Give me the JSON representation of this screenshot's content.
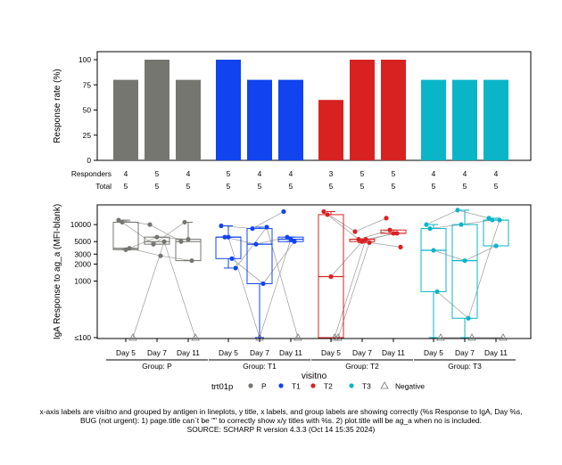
{
  "chart_data": [
    {
      "type": "bar",
      "ylabel": "Response rate (%)",
      "ylim": [
        0,
        110
      ],
      "yticks": [
        0,
        25,
        50,
        75,
        100
      ],
      "categories": [
        "Day 5",
        "Day 7",
        "Day 11",
        "Day 5",
        "Day 7",
        "Day 11",
        "Day 5",
        "Day 7",
        "Day 11",
        "Day 5",
        "Day 7",
        "Day 11"
      ],
      "groups": [
        "P",
        "T1",
        "T2",
        "T3"
      ],
      "bar_group": [
        "P",
        "P",
        "P",
        "T1",
        "T1",
        "T1",
        "T2",
        "T2",
        "T2",
        "T3",
        "T3",
        "T3"
      ],
      "values": [
        80,
        100,
        80,
        100,
        80,
        80,
        60,
        100,
        100,
        80,
        80,
        80
      ],
      "table_labels": {
        "responders": "Responders",
        "total": "Total"
      },
      "responders": [
        "4",
        "5",
        "4",
        "5",
        "4",
        "4",
        "3",
        "5",
        "5",
        "4",
        "4",
        "4"
      ],
      "total": [
        "5",
        "5",
        "5",
        "5",
        "5",
        "5",
        "5",
        "5",
        "5",
        "5",
        "5",
        "5"
      ],
      "grid": false
    },
    {
      "type": "box",
      "ylabel": "IgA Response to ag_a (MFI-blank)",
      "xlabel": "visitno",
      "y_scale": "log",
      "ylim": [
        100,
        20000
      ],
      "y_ticks": [
        100,
        1000,
        2000,
        3000,
        5000,
        10000
      ],
      "y_tick_labels": [
        "≤100",
        "1000",
        "2000",
        "3000",
        "5000",
        "10000"
      ],
      "visits": [
        "Day 5",
        "Day 7",
        "Day 11"
      ],
      "group_labels": [
        "Group: P",
        "Group: T1",
        "Group: T2",
        "Group: T3"
      ],
      "group_keys": [
        "P",
        "T1",
        "T2",
        "T3"
      ],
      "legend": {
        "title": "trt01p",
        "items": [
          {
            "label": "P",
            "color": "#767670",
            "shape": "circle"
          },
          {
            "label": "T1",
            "color": "#1144ee",
            "shape": "circle"
          },
          {
            "label": "T2",
            "color": "#d82222",
            "shape": "circle"
          },
          {
            "label": "T3",
            "color": "#0bb5c8",
            "shape": "circle"
          },
          {
            "label": "Negative",
            "color": "#777777",
            "shape": "triangle"
          }
        ]
      },
      "groups": [
        {
          "name": "P",
          "color": "#767670",
          "subjects": [
            [
              12000,
              10000,
              5000
            ],
            [
              11000,
              4500,
              11000
            ],
            [
              3600,
              6000,
              5500
            ],
            [
              3800,
              2800,
              2300
            ],
            [
              100,
              5000,
              100
            ]
          ]
        },
        {
          "name": "T1",
          "color": "#1144ee",
          "subjects": [
            [
              9500,
              8500,
              17000
            ],
            [
              6000,
              4500,
              6000
            ],
            [
              6000,
              100,
              5500
            ],
            [
              2500,
              900,
              5000
            ],
            [
              1700,
              9000,
              100
            ]
          ]
        },
        {
          "name": "T2",
          "color": "#d82222",
          "subjects": [
            [
              17000,
              7500,
              13000
            ],
            [
              15000,
              5500,
              8000
            ],
            [
              1200,
              5000,
              7000
            ],
            [
              100,
              5500,
              7000
            ],
            [
              100,
              4800,
              4000
            ]
          ]
        },
        {
          "name": "T3",
          "color": "#0bb5c8",
          "subjects": [
            [
              10000,
              18000,
              13000
            ],
            [
              8500,
              10000,
              12000
            ],
            [
              3500,
              2300,
              4200
            ],
            [
              650,
              220,
              12000
            ],
            [
              100,
              100,
              100
            ]
          ]
        }
      ]
    }
  ],
  "footer": {
    "line1": "x-axis labels are visitno and grouped by antigen in lineplots, y title, x labels, and group labels are showing correctly (%s Response to IgA, Day %s,",
    "line2": "BUG (not urgent): 1) page.title can`t be \"\" to correctly show x/y titles with %s. 2) plot.title will be ag_a when no  is included.",
    "line3": "SOURCE: SCHARP  R version 4.3.3 (Oct 14 15:35 2024)"
  }
}
